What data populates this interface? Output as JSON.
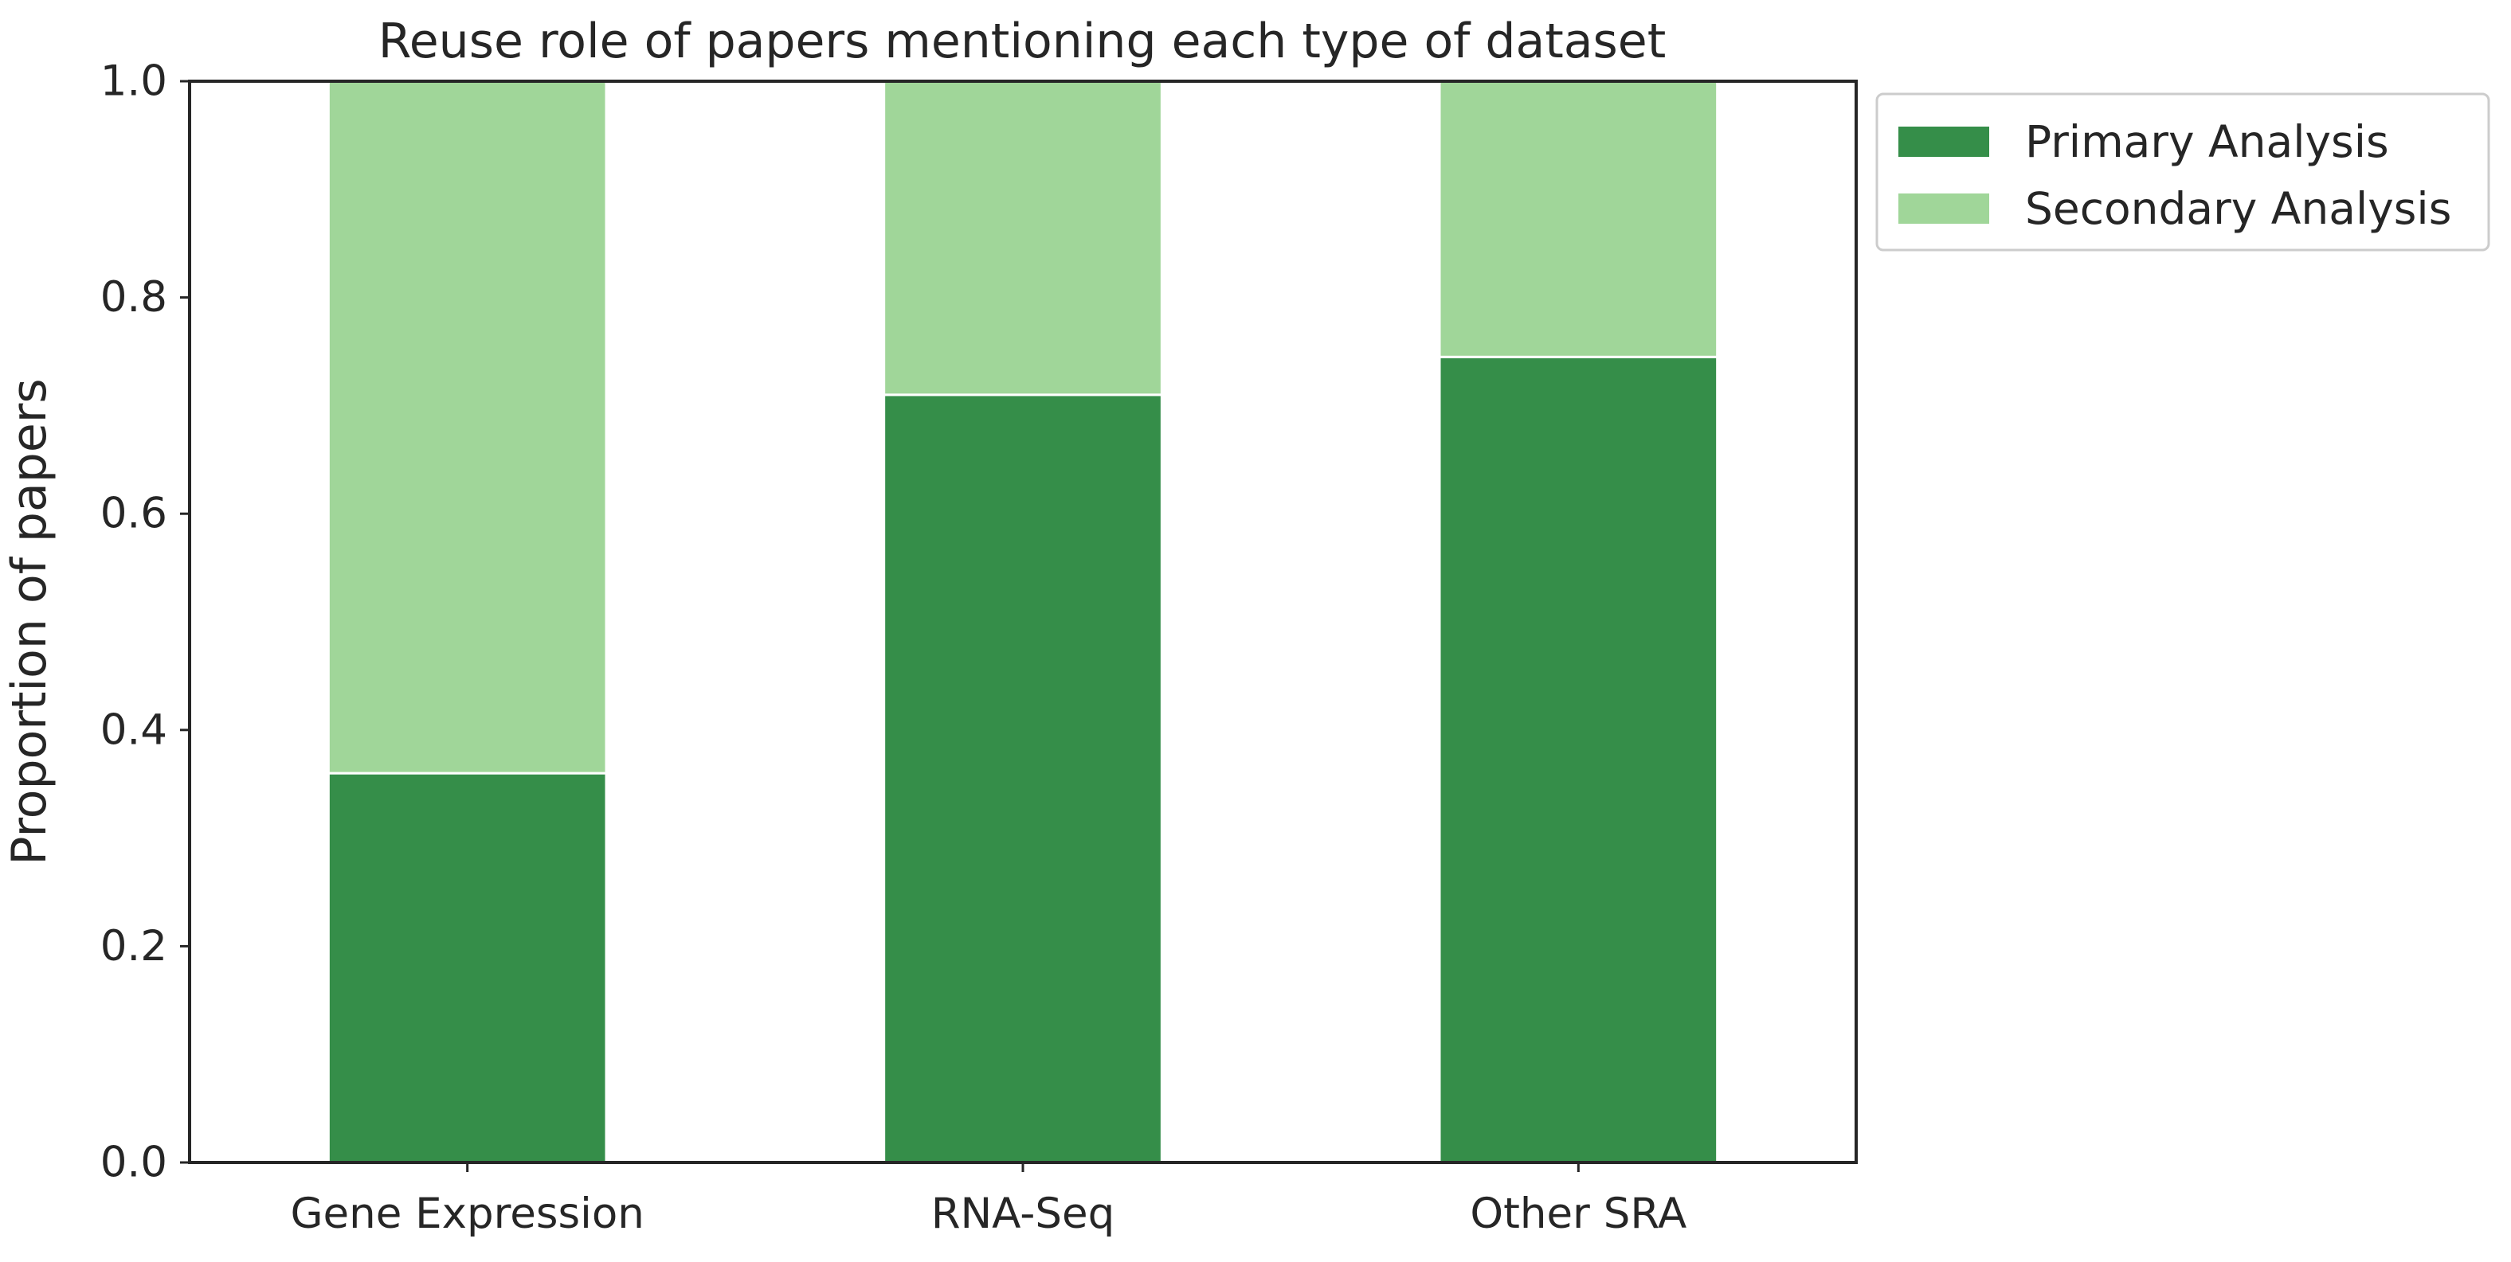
{
  "chart_data": {
    "type": "bar",
    "stacked": true,
    "title": "Reuse role of papers mentioning each type of dataset",
    "xlabel": "",
    "ylabel": "Proportion of papers",
    "categories": [
      "Gene Expression",
      "RNA-Seq",
      "Other SRA"
    ],
    "series": [
      {
        "name": "Primary Analysis",
        "values": [
          0.36,
          0.71,
          0.745
        ],
        "color": "#358e49"
      },
      {
        "name": "Secondary Analysis",
        "values": [
          0.64,
          0.29,
          0.255
        ],
        "color": "#a0d699"
      }
    ],
    "ylim": [
      0,
      1.0
    ],
    "yticks": [
      "0.0",
      "0.2",
      "0.4",
      "0.6",
      "0.8",
      "1.0"
    ],
    "grid": false,
    "legend_position": "outside upper right"
  }
}
